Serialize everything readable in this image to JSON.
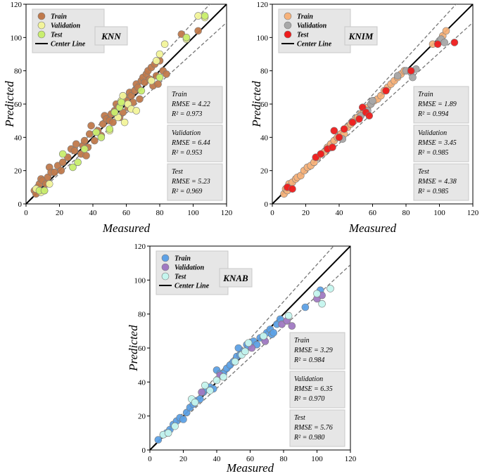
{
  "figure": {
    "colors": {
      "box_fill": "#e6e6e6",
      "box_stroke": "#c8c8c8",
      "center_line": "#000000",
      "bound_line": "#777777"
    }
  },
  "chart_data": [
    {
      "type": "scatter",
      "model": "KNN",
      "xlabel": "Measured",
      "ylabel": "Predicted",
      "xlim": [
        0,
        120
      ],
      "ylim": [
        0,
        120
      ],
      "xticks": [
        0,
        20,
        40,
        60,
        80,
        100,
        120
      ],
      "yticks": [
        0,
        20,
        40,
        60,
        80,
        100,
        120
      ],
      "center_line_label": "Center Line",
      "bounds": [
        [
          0,
          0,
          120,
          131
        ],
        [
          0,
          0,
          120,
          109
        ]
      ],
      "series": [
        {
          "name": "Train",
          "color": "#c0794b",
          "points": [
            [
              5,
              8
            ],
            [
              6,
              6
            ],
            [
              7,
              10
            ],
            [
              8,
              12
            ],
            [
              9,
              15
            ],
            [
              10,
              14
            ],
            [
              11,
              8
            ],
            [
              12,
              12
            ],
            [
              13,
              16
            ],
            [
              14,
              22
            ],
            [
              15,
              19
            ],
            [
              17,
              19
            ],
            [
              19,
              23
            ],
            [
              21,
              20
            ],
            [
              22,
              25
            ],
            [
              25,
              28
            ],
            [
              27,
              33
            ],
            [
              29,
              32
            ],
            [
              30,
              36
            ],
            [
              33,
              30
            ],
            [
              34,
              35
            ],
            [
              35,
              38
            ],
            [
              36,
              29
            ],
            [
              37,
              34
            ],
            [
              38,
              42
            ],
            [
              39,
              47
            ],
            [
              41,
              38
            ],
            [
              43,
              44
            ],
            [
              45,
              41
            ],
            [
              46,
              48
            ],
            [
              47,
              53
            ],
            [
              48,
              51
            ],
            [
              50,
              50
            ],
            [
              51,
              54
            ],
            [
              52,
              49
            ],
            [
              53,
              56
            ],
            [
              54,
              60
            ],
            [
              55,
              58
            ],
            [
              56,
              52
            ],
            [
              57,
              61
            ],
            [
              58,
              55
            ],
            [
              59,
              64
            ],
            [
              60,
              62
            ],
            [
              61,
              58
            ],
            [
              62,
              67
            ],
            [
              63,
              65
            ],
            [
              64,
              61
            ],
            [
              65,
              68
            ],
            [
              66,
              72
            ],
            [
              67,
              70
            ],
            [
              68,
              63
            ],
            [
              69,
              74
            ],
            [
              70,
              76
            ],
            [
              71,
              73
            ],
            [
              72,
              78
            ],
            [
              73,
              80
            ],
            [
              74,
              75
            ],
            [
              75,
              82
            ],
            [
              76,
              71
            ],
            [
              77,
              84
            ],
            [
              78,
              77
            ],
            [
              79,
              72
            ],
            [
              80,
              86
            ],
            [
              82,
              80
            ],
            [
              84,
              78
            ],
            [
              93,
              102
            ],
            [
              103,
              104
            ]
          ]
        },
        {
          "name": "Validation",
          "color": "#f2f49a",
          "points": [
            [
              6,
              9
            ],
            [
              9,
              7
            ],
            [
              14,
              12
            ],
            [
              50,
              44
            ],
            [
              55,
              52
            ],
            [
              57,
              62
            ],
            [
              58,
              65
            ],
            [
              59,
              49
            ],
            [
              61,
              60
            ],
            [
              63,
              57
            ],
            [
              66,
              56
            ],
            [
              75,
              74
            ],
            [
              78,
              86
            ],
            [
              80,
              90
            ],
            [
              83,
              96
            ],
            [
              96,
              99
            ],
            [
              103,
              113
            ],
            [
              107,
              112
            ]
          ]
        },
        {
          "name": "Test",
          "color": "#c8ee6e",
          "points": [
            [
              8,
              8
            ],
            [
              11,
              8
            ],
            [
              22,
              30
            ],
            [
              28,
              22
            ],
            [
              31,
              25
            ],
            [
              35,
              33
            ],
            [
              42,
              43
            ],
            [
              45,
              40
            ],
            [
              50,
              45
            ],
            [
              53,
              55
            ],
            [
              56,
              58
            ],
            [
              57,
              61
            ],
            [
              69,
              68
            ],
            [
              80,
              76
            ],
            [
              96,
              100
            ],
            [
              107,
              113
            ]
          ]
        }
      ],
      "stats": [
        {
          "label": "Train",
          "rmse": "RMSE = 4.22",
          "r2": "R² = 0.973"
        },
        {
          "label": "Validation",
          "rmse": "RMSE = 6.44",
          "r2": "R² = 0.953"
        },
        {
          "label": "Test",
          "rmse": "RMSE = 5.23",
          "r2": "R² = 0.969"
        }
      ]
    },
    {
      "type": "scatter",
      "model": "KNIM",
      "xlabel": "Measured",
      "ylabel": "Predicted",
      "xlim": [
        0,
        120
      ],
      "ylim": [
        0,
        120
      ],
      "xticks": [
        0,
        20,
        40,
        60,
        80,
        100,
        120
      ],
      "yticks": [
        0,
        20,
        40,
        60,
        80,
        100,
        120
      ],
      "center_line_label": "Center Line",
      "bounds": [
        [
          0,
          0,
          120,
          131
        ],
        [
          0,
          0,
          120,
          109
        ]
      ],
      "series": [
        {
          "name": "Train",
          "color": "#f7b27a",
          "points": [
            [
              7,
              6
            ],
            [
              8,
              9
            ],
            [
              9,
              8
            ],
            [
              10,
              12
            ],
            [
              11,
              10
            ],
            [
              12,
              13
            ],
            [
              14,
              15
            ],
            [
              15,
              16
            ],
            [
              17,
              17
            ],
            [
              19,
              20
            ],
            [
              21,
              22
            ],
            [
              23,
              23
            ],
            [
              25,
              25
            ],
            [
              27,
              28
            ],
            [
              29,
              30
            ],
            [
              31,
              31
            ],
            [
              33,
              34
            ],
            [
              35,
              36
            ],
            [
              37,
              38
            ],
            [
              39,
              40
            ],
            [
              41,
              42
            ],
            [
              43,
              42
            ],
            [
              45,
              46
            ],
            [
              47,
              48
            ],
            [
              49,
              50
            ],
            [
              51,
              52
            ],
            [
              53,
              54
            ],
            [
              55,
              55
            ],
            [
              57,
              58
            ],
            [
              59,
              60
            ],
            [
              61,
              62
            ],
            [
              63,
              63
            ],
            [
              65,
              65
            ],
            [
              67,
              68
            ],
            [
              69,
              70
            ],
            [
              71,
              72
            ],
            [
              73,
              74
            ],
            [
              75,
              76
            ],
            [
              77,
              78
            ],
            [
              79,
              80
            ],
            [
              96,
              96
            ],
            [
              102,
              101
            ],
            [
              104,
              104
            ]
          ]
        },
        {
          "name": "Validation",
          "color": "#a8a8a8",
          "points": [
            [
              42,
              39
            ],
            [
              53,
              53
            ],
            [
              57,
              56
            ],
            [
              59,
              60
            ],
            [
              60,
              62
            ],
            [
              75,
              77
            ],
            [
              80,
              80
            ],
            [
              83,
              79
            ],
            [
              84,
              76
            ],
            [
              86,
              81
            ],
            [
              100,
              98
            ],
            [
              101,
              99
            ],
            [
              103,
              97
            ]
          ]
        },
        {
          "name": "Test",
          "color": "#ee1c1c",
          "points": [
            [
              9,
              10
            ],
            [
              12,
              9
            ],
            [
              26,
              28
            ],
            [
              29,
              30
            ],
            [
              33,
              33
            ],
            [
              36,
              34
            ],
            [
              37,
              44
            ],
            [
              40,
              40
            ],
            [
              43,
              45
            ],
            [
              48,
              49
            ],
            [
              52,
              51
            ],
            [
              54,
              58
            ],
            [
              56,
              55
            ],
            [
              58,
              53
            ],
            [
              68,
              68
            ],
            [
              83,
              80
            ],
            [
              99,
              96
            ],
            [
              109,
              97
            ]
          ]
        }
      ],
      "stats": [
        {
          "label": "Train",
          "rmse": "RMSE = 1.89",
          "r2": "R² = 0.994"
        },
        {
          "label": "Validation",
          "rmse": "RMSE = 3.45",
          "r2": "R² = 0.985"
        },
        {
          "label": "Test",
          "rmse": "RMSE = 4.38",
          "r2": "R² = 0.985"
        }
      ]
    },
    {
      "type": "scatter",
      "model": "KNAB",
      "xlabel": "Measured",
      "ylabel": "Predicted",
      "xlim": [
        0,
        120
      ],
      "ylim": [
        0,
        120
      ],
      "xticks": [
        0,
        20,
        40,
        60,
        80,
        100,
        120
      ],
      "yticks": [
        0,
        20,
        40,
        60,
        80,
        100,
        120
      ],
      "center_line_label": "Center Line",
      "bounds": [
        [
          0,
          0,
          120,
          131
        ],
        [
          0,
          0,
          120,
          109
        ]
      ],
      "series": [
        {
          "name": "Train",
          "color": "#5da1e6",
          "points": [
            [
              5,
              6
            ],
            [
              8,
              9
            ],
            [
              10,
              10
            ],
            [
              12,
              12
            ],
            [
              14,
              15
            ],
            [
              16,
              17
            ],
            [
              18,
              19
            ],
            [
              20,
              18
            ],
            [
              22,
              22
            ],
            [
              24,
              25
            ],
            [
              26,
              27
            ],
            [
              28,
              29
            ],
            [
              30,
              30
            ],
            [
              32,
              34
            ],
            [
              34,
              36
            ],
            [
              36,
              37
            ],
            [
              38,
              36
            ],
            [
              40,
              47
            ],
            [
              42,
              45
            ],
            [
              44,
              45
            ],
            [
              46,
              48
            ],
            [
              48,
              50
            ],
            [
              50,
              52
            ],
            [
              52,
              55
            ],
            [
              53,
              60
            ],
            [
              54,
              56
            ],
            [
              56,
              58
            ],
            [
              58,
              62
            ],
            [
              59,
              61
            ],
            [
              60,
              63
            ],
            [
              62,
              64
            ],
            [
              64,
              62
            ],
            [
              66,
              66
            ],
            [
              68,
              66
            ],
            [
              70,
              69
            ],
            [
              72,
              71
            ],
            [
              73,
              68
            ],
            [
              74,
              69
            ],
            [
              76,
              74
            ],
            [
              78,
              77
            ],
            [
              93,
              84
            ],
            [
              102,
              94
            ]
          ]
        },
        {
          "name": "Validation",
          "color": "#a079c2",
          "points": [
            [
              31,
              34
            ],
            [
              42,
              44
            ],
            [
              61,
              60
            ],
            [
              69,
              64
            ],
            [
              79,
              74
            ],
            [
              82,
              76
            ],
            [
              85,
              73
            ],
            [
              100,
              89
            ],
            [
              103,
              91
            ]
          ]
        },
        {
          "name": "Test",
          "color": "#c5f5ee",
          "points": [
            [
              8,
              9
            ],
            [
              11,
              10
            ],
            [
              15,
              14
            ],
            [
              25,
              30
            ],
            [
              27,
              28
            ],
            [
              33,
              38
            ],
            [
              36,
              35
            ],
            [
              40,
              41
            ],
            [
              44,
              43
            ],
            [
              51,
              52
            ],
            [
              55,
              56
            ],
            [
              57,
              58
            ],
            [
              59,
              63
            ],
            [
              68,
              67
            ],
            [
              83,
              79
            ],
            [
              100,
              92
            ],
            [
              103,
              86
            ],
            [
              108,
              95
            ]
          ]
        }
      ],
      "stats": [
        {
          "label": "Train",
          "rmse": "RMSE = 3.29",
          "r2": "R² = 0.984"
        },
        {
          "label": "Validation",
          "rmse": "RMSE = 6.35",
          "r2": "R² = 0.970"
        },
        {
          "label": "Test",
          "rmse": "RMSE = 5.76",
          "r2": "R² = 0.980"
        }
      ]
    }
  ]
}
